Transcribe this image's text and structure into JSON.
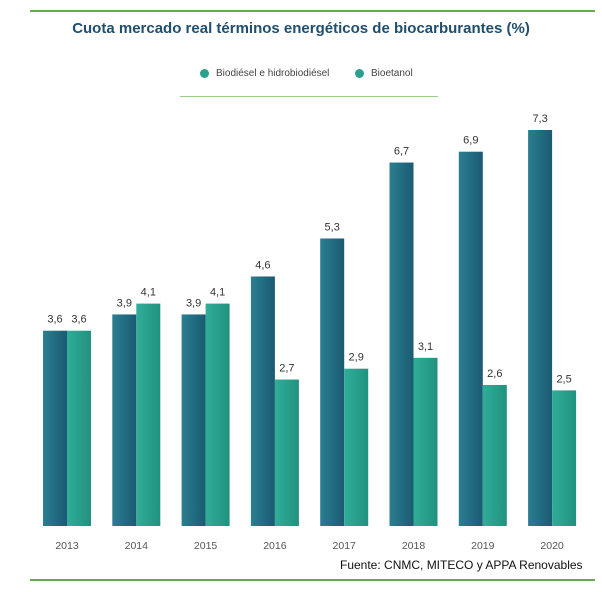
{
  "chart_data": {
    "type": "bar",
    "title": "Cuota mercado real términos energéticos de biocarburantes (%)",
    "categories": [
      "2013",
      "2014",
      "2015",
      "2016",
      "2017",
      "2018",
      "2019",
      "2020"
    ],
    "series": [
      {
        "name": "Biodiésel e hidrobiodiésel",
        "color": "#1f6b80",
        "values": [
          3.6,
          3.9,
          3.9,
          4.6,
          5.3,
          6.7,
          6.9,
          7.3
        ],
        "labels": [
          "3,6",
          "3,9",
          "3,9",
          "4,6",
          "5,3",
          "6,7",
          "6,9",
          "7,3"
        ]
      },
      {
        "name": "Bioetanol",
        "color": "#28a08f",
        "values": [
          3.6,
          4.1,
          4.1,
          2.7,
          2.9,
          3.1,
          2.6,
          2.5
        ],
        "labels": [
          "3,6",
          "4,1",
          "4,1",
          "2,7",
          "2,9",
          "3,1",
          "2,6",
          "2,5"
        ]
      }
    ],
    "ylim": [
      0,
      7.3
    ],
    "legend_position": "top",
    "grid": false
  },
  "source": "Fuente: CNMC, MITECO y APPA Renovables"
}
